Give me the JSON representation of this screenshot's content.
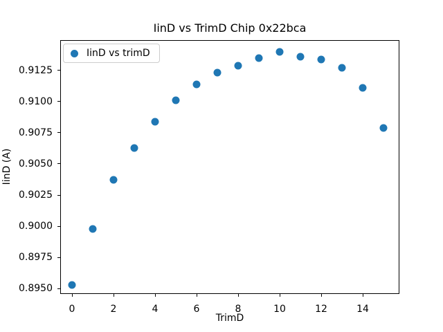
{
  "figure": {
    "background": "#ffffff"
  },
  "chart_data": {
    "type": "scatter",
    "title": "IinD vs TrimD Chip 0x22bca",
    "xlabel": "TrimD",
    "ylabel": "IinD (A)",
    "legend": {
      "entries": [
        "IinD vs trimD"
      ],
      "position": "upper left"
    },
    "x": [
      0,
      1,
      2,
      3,
      4,
      5,
      6,
      7,
      8,
      9,
      10,
      11,
      12,
      13,
      14,
      15
    ],
    "series": [
      {
        "name": "IinD vs trimD",
        "marker": "circle",
        "color": "#1f77b4",
        "values": [
          0.8953,
          0.8998,
          0.9037,
          0.9063,
          0.9084,
          0.9101,
          0.9114,
          0.9123,
          0.9129,
          0.9135,
          0.914,
          0.9136,
          0.9134,
          0.9127,
          0.9111,
          0.9079
        ]
      }
    ],
    "xlim": [
      -0.55,
      15.75
    ],
    "ylim": [
      0.8946,
      0.9149
    ],
    "xticks": {
      "values": [
        0,
        2,
        4,
        6,
        8,
        10,
        12,
        14
      ],
      "labels": [
        "0",
        "2",
        "4",
        "6",
        "8",
        "10",
        "12",
        "14"
      ]
    },
    "yticks": {
      "values": [
        0.895,
        0.8975,
        0.9,
        0.9025,
        0.905,
        0.9075,
        0.91,
        0.9125
      ],
      "labels": [
        "0.8950",
        "0.8975",
        "0.9000",
        "0.9025",
        "0.9050",
        "0.9075",
        "0.9100",
        "0.9125"
      ]
    },
    "grid": false,
    "axis_color": "#000000",
    "text_color": "#000000"
  }
}
